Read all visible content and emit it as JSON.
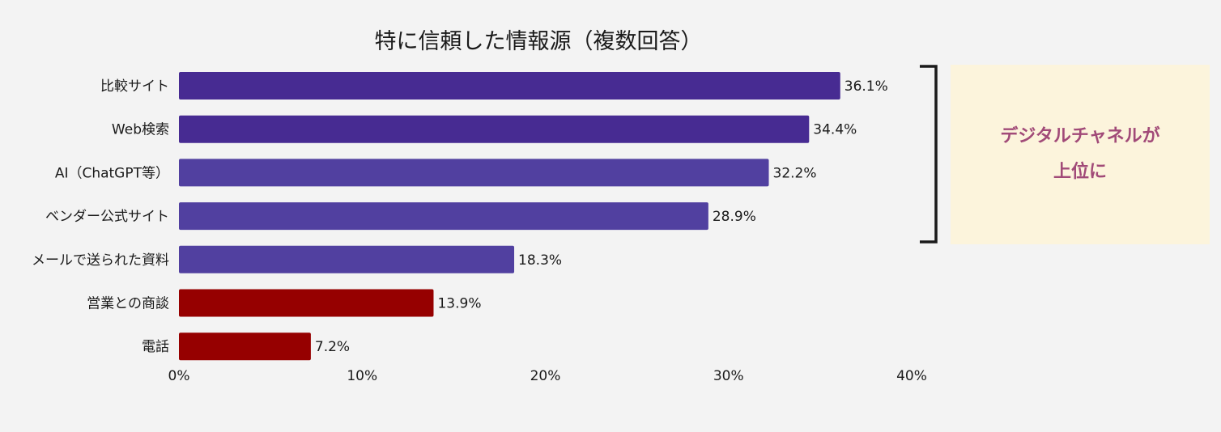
{
  "chart_data": {
    "type": "bar",
    "orientation": "horizontal",
    "title": "特に信頼した情報源（複数回答）",
    "categories": [
      "比較サイト",
      "Web検索",
      "AI（ChatGPT等）",
      "ベンダー公式サイト",
      "メールで送られた資料",
      "営業との商談",
      "電話"
    ],
    "values": [
      36.1,
      34.4,
      32.2,
      28.9,
      18.3,
      13.9,
      7.2
    ],
    "value_labels": [
      "36.1%",
      "34.4%",
      "32.2%",
      "28.9%",
      "18.3%",
      "13.9%",
      "7.2%"
    ],
    "bar_colors": [
      "#472b92",
      "#472b92",
      "#5140a0",
      "#5140a0",
      "#5140a0",
      "#960000",
      "#960000"
    ],
    "xlim": [
      0,
      40
    ],
    "xticks": [
      0,
      10,
      20,
      30,
      40
    ],
    "xtick_labels": [
      "0%",
      "10%",
      "20%",
      "30%",
      "40%"
    ],
    "grid": false,
    "xlabel": "",
    "ylabel": ""
  },
  "annotation": {
    "bracket_color": "#1a1a1a",
    "text": "デジタルチャネルが\n上位に",
    "text_color": "#a14a78",
    "box_color": "#fcf4dc"
  }
}
